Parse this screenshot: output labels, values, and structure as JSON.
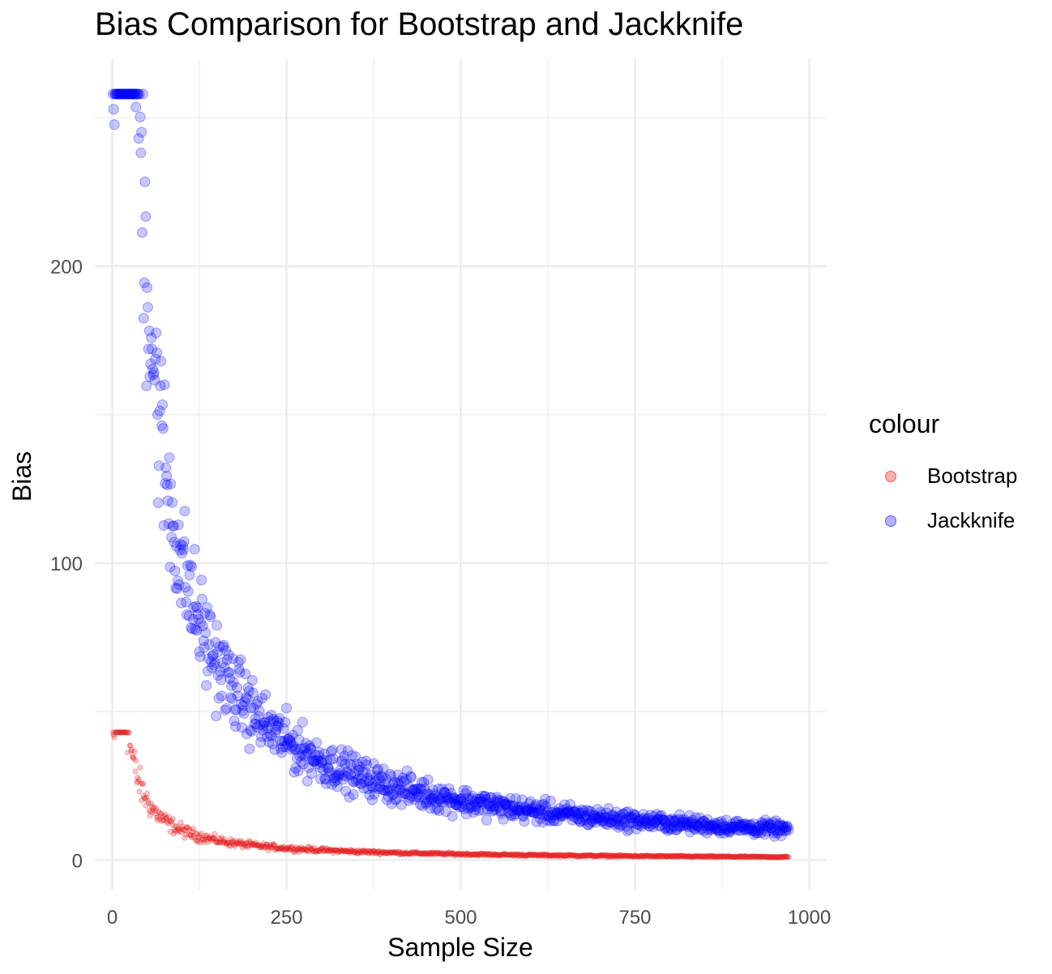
{
  "chart_data": {
    "type": "scatter",
    "title": "Bias Comparison for Bootstrap and Jackknife",
    "xlabel": "Sample Size",
    "ylabel": "Bias",
    "xlim": [
      -25,
      1025
    ],
    "ylim": [
      -10,
      270
    ],
    "x_ticks": [
      0,
      250,
      500,
      750,
      1000
    ],
    "y_ticks": [
      0,
      100,
      200
    ],
    "grid": true,
    "legend_title": "colour",
    "legend_position": "right",
    "x_range": [
      1,
      970
    ],
    "series": [
      {
        "name": "Bootstrap",
        "color": "#e41a1c",
        "point_radius": 3,
        "model": "bias ≈ 1000/n",
        "max": 43
      },
      {
        "name": "Jackknife",
        "color": "#0000ff",
        "point_radius": 6,
        "model": "bias ≈ 10000/n",
        "max": 258
      }
    ]
  }
}
